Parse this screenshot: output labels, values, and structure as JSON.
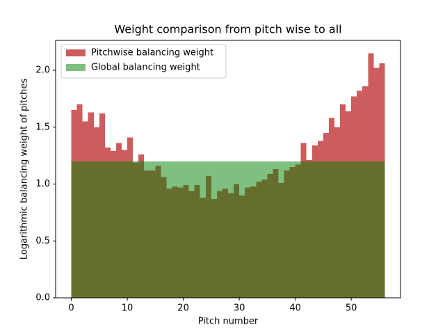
{
  "chart_data": {
    "type": "histogram",
    "title": "Weight comparison from pitch wise to all",
    "xlabel": "Pitch number",
    "ylabel": "Logarithmic balancing weight of pitches",
    "bins": [
      0,
      1,
      2,
      3,
      4,
      5,
      6,
      7,
      8,
      9,
      10,
      11,
      12,
      13,
      14,
      15,
      16,
      17,
      18,
      19,
      20,
      21,
      22,
      23,
      24,
      25,
      26,
      27,
      28,
      29,
      30,
      31,
      32,
      33,
      34,
      35,
      36,
      37,
      38,
      39,
      40,
      41,
      42,
      43,
      44,
      45,
      46,
      47,
      48,
      49,
      50,
      51,
      52,
      53,
      54,
      55,
      56
    ],
    "series": [
      {
        "name": "Pitchwise balancing weight",
        "color": "#cd5c5c",
        "opacity": 1,
        "values": [
          1.65,
          1.7,
          1.55,
          1.63,
          1.5,
          1.62,
          1.32,
          1.29,
          1.36,
          1.3,
          1.41,
          1.19,
          1.26,
          1.12,
          1.12,
          1.16,
          1.06,
          0.96,
          0.98,
          0.97,
          0.99,
          0.94,
          0.99,
          0.88,
          1.07,
          0.87,
          0.94,
          0.96,
          0.92,
          1.0,
          0.9,
          0.97,
          0.98,
          1.02,
          1.04,
          1.09,
          1.13,
          1.01,
          1.12,
          1.15,
          1.17,
          1.36,
          1.21,
          1.34,
          1.38,
          1.45,
          1.58,
          1.5,
          1.7,
          1.64,
          1.77,
          1.82,
          1.86,
          2.15,
          2.02,
          2.06
        ]
      },
      {
        "name": "Global balancing weight",
        "color": "#008000",
        "opacity": 0.5,
        "values": [
          1.2,
          1.2,
          1.2,
          1.2,
          1.2,
          1.2,
          1.2,
          1.2,
          1.2,
          1.2,
          1.2,
          1.2,
          1.2,
          1.2,
          1.2,
          1.2,
          1.2,
          1.2,
          1.2,
          1.2,
          1.2,
          1.2,
          1.2,
          1.2,
          1.2,
          1.2,
          1.2,
          1.2,
          1.2,
          1.2,
          1.2,
          1.2,
          1.2,
          1.2,
          1.2,
          1.2,
          1.2,
          1.2,
          1.2,
          1.2,
          1.2,
          1.2,
          1.2,
          1.2,
          1.2,
          1.2,
          1.2,
          1.2,
          1.2,
          1.2,
          1.2,
          1.2,
          1.2,
          1.2,
          1.2,
          1.2
        ]
      }
    ],
    "xlim": [
      -2.8,
      58.8
    ],
    "xticks": [
      0,
      10,
      20,
      30,
      40,
      50
    ],
    "ylim": [
      0,
      2.263
    ],
    "yticks": [
      {
        "value": 0,
        "label": "0.0"
      },
      0.5,
      {
        "value": 1,
        "label": "1.0"
      },
      1.5,
      {
        "value": 2,
        "label": "2.0"
      }
    ],
    "legend": "upper left"
  }
}
